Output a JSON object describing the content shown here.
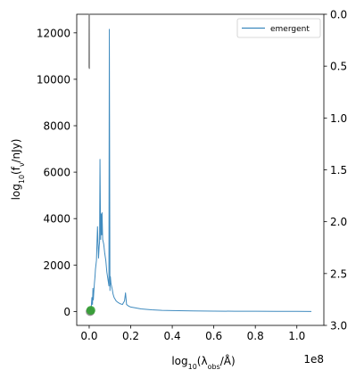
{
  "chart_data": {
    "type": "line",
    "xlabel_prefix": "log",
    "xlabel_sub": "10",
    "xlabel_mid": "(λ",
    "xlabel_mid_sub": "obs",
    "xlabel_suffix": "/Å)",
    "ylabel_prefix": "log",
    "ylabel_sub": "10",
    "ylabel_mid": "(f",
    "ylabel_mid_sub": "ν",
    "ylabel_suffix": "/nJy)",
    "x_offset_label": "1e8",
    "x_scale": 100000000,
    "xlim": [
      -0.06,
      1.13
    ],
    "ylim": [
      -600,
      12800
    ],
    "y2lim": [
      3.0,
      0.0
    ],
    "xticks": [
      {
        "value": 0.0,
        "label": "0.0"
      },
      {
        "value": 0.2,
        "label": "0.2"
      },
      {
        "value": 0.4,
        "label": "0.4"
      },
      {
        "value": 0.6,
        "label": "0.6"
      },
      {
        "value": 0.8,
        "label": "0.8"
      },
      {
        "value": 1.0,
        "label": "1.0"
      }
    ],
    "yticks": [
      {
        "value": 0,
        "label": "0"
      },
      {
        "value": 2000,
        "label": "2000"
      },
      {
        "value": 4000,
        "label": "4000"
      },
      {
        "value": 6000,
        "label": "6000"
      },
      {
        "value": 8000,
        "label": "8000"
      },
      {
        "value": 10000,
        "label": "10000"
      },
      {
        "value": 12000,
        "label": "12000"
      }
    ],
    "y2ticks": [
      {
        "value": 0.0,
        "label": "0.0"
      },
      {
        "value": 0.5,
        "label": "0.5"
      },
      {
        "value": 1.0,
        "label": "1.0"
      },
      {
        "value": 1.5,
        "label": "1.5"
      },
      {
        "value": 2.0,
        "label": "2.0"
      },
      {
        "value": 2.5,
        "label": "2.5"
      },
      {
        "value": 3.0,
        "label": "3.0"
      }
    ],
    "legend": {
      "placement": "top-right"
    },
    "grid": false,
    "colors": {
      "emergent": "#1f77b4",
      "gray_trace": "#7f7f7f",
      "marker": "#2ca02c"
    },
    "series": [
      {
        "name": "emergent",
        "color": "#1f77b4",
        "x": [
          0.0,
          0.005,
          0.01,
          0.013,
          0.016,
          0.018,
          0.02,
          0.022,
          0.025,
          0.028,
          0.03,
          0.035,
          0.04,
          0.045,
          0.048,
          0.05,
          0.052,
          0.055,
          0.058,
          0.06,
          0.062,
          0.065,
          0.07,
          0.075,
          0.08,
          0.085,
          0.09,
          0.095,
          0.097,
          0.1,
          0.102,
          0.105,
          0.11,
          0.115,
          0.12,
          0.13,
          0.14,
          0.15,
          0.16,
          0.17,
          0.175,
          0.18,
          0.19,
          0.2,
          0.25,
          0.3,
          0.35,
          0.4,
          0.5,
          0.6,
          0.7,
          0.8,
          0.9,
          1.0,
          1.07
        ],
        "y": [
          0,
          50,
          200,
          600,
          300,
          1000,
          500,
          800,
          1200,
          1500,
          1800,
          2200,
          3650,
          2300,
          2800,
          3000,
          6550,
          3100,
          4200,
          3300,
          4250,
          3100,
          2900,
          2500,
          2200,
          1700,
          1400,
          1100,
          12150,
          900,
          1500,
          1200,
          1000,
          750,
          600,
          450,
          380,
          330,
          300,
          450,
          800,
          300,
          230,
          190,
          110,
          70,
          50,
          40,
          25,
          15,
          10,
          8,
          5,
          3,
          2
        ]
      },
      {
        "name": "",
        "color": "#7f7f7f",
        "x": [
          -0.0009,
          -0.0003,
          0.0003,
          0.0009
        ],
        "y": [
          10500,
          12800,
          12800,
          10450
        ]
      }
    ],
    "markers": [
      {
        "x": 0.005,
        "y": 0,
        "color": "#7f7f7f"
      },
      {
        "x": 0.008,
        "y": 50,
        "color": "#2ca02c"
      }
    ]
  }
}
